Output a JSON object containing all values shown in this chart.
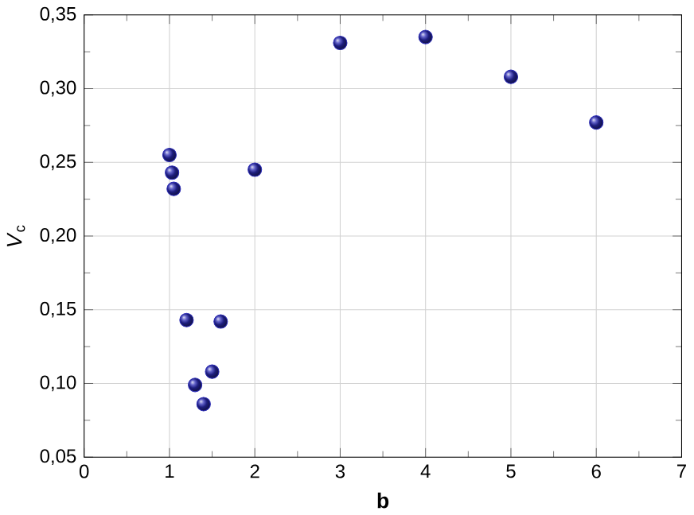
{
  "chart_data": {
    "type": "scatter",
    "xlabel": "**b**",
    "ylabel": "*V*$_{c}$",
    "x": [
      1.0,
      1.03,
      1.05,
      1.2,
      1.3,
      1.4,
      1.5,
      1.6,
      2.0,
      3.0,
      4.0,
      5.0,
      6.0
    ],
    "series": [
      {
        "color": "#2b2bb5",
        "values": [
          0.255,
          0.243,
          0.232,
          0.143,
          0.099,
          0.086,
          0.108,
          0.142,
          0.245,
          0.331,
          0.335,
          0.308,
          0.277
        ]
      }
    ],
    "xlim": [
      0,
      7
    ],
    "xticks": [
      0,
      1,
      2,
      3,
      4,
      5,
      6,
      7
    ],
    "ylim": [
      0.05,
      0.35
    ],
    "yticks": [
      {
        "value": 0.05,
        "label": "0,05"
      },
      {
        "value": 0.1,
        "label": "0,10"
      },
      {
        "value": 0.15,
        "label": "0,15"
      },
      {
        "value": 0.2,
        "label": "0,20"
      },
      {
        "value": 0.25,
        "label": "0,25"
      },
      {
        "value": 0.3,
        "label": "0,30"
      },
      {
        "value": 0.35,
        "label": "0,35"
      }
    ],
    "grid": true,
    "marker": "circle"
  }
}
